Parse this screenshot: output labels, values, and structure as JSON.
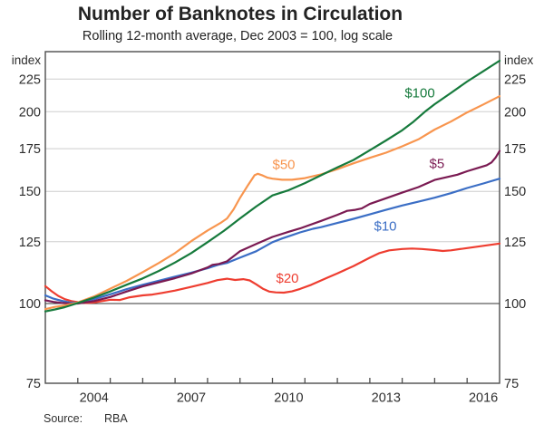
{
  "header": {
    "title": "Number of Banknotes in Circulation",
    "subtitle": "Rolling 12-month average, Dec 2003 = 100, log scale"
  },
  "footer": {
    "source_label": "Source:",
    "source_value": "RBA"
  },
  "chart_data": {
    "type": "line",
    "title": "Number of Banknotes in Circulation",
    "subtitle": "Rolling 12-month average, Dec 2003 = 100, log scale",
    "y_scale": "log",
    "axis_unit_label": "index",
    "x_domain": [
      2003,
      2017
    ],
    "y_domain": [
      75,
      248
    ],
    "y_ticks": [
      225,
      200,
      175,
      150,
      125,
      100,
      75
    ],
    "gridline_values": [
      125,
      150,
      175,
      200,
      225
    ],
    "reference_line": 100,
    "x_ticks": [
      2004,
      2005,
      2006,
      2007,
      2008,
      2009,
      2010,
      2011,
      2012,
      2013,
      2014,
      2015,
      2016
    ],
    "x_tick_labels": [
      {
        "position": 2004.5,
        "label": "2004"
      },
      {
        "position": 2007.5,
        "label": "2007"
      },
      {
        "position": 2010.5,
        "label": "2010"
      },
      {
        "position": 2013.5,
        "label": "2013"
      },
      {
        "position": 2016.5,
        "label": "2016"
      }
    ],
    "colors": {
      "grid": "#cdcdcd",
      "frame": "#4d4d4d",
      "reference": "#333333",
      "text": "#2e2e2e"
    },
    "series": [
      {
        "id": "20",
        "name": "$20",
        "color": "#ee3d30",
        "points": [
          [
            2003.0,
            106.5
          ],
          [
            2003.2,
            104.5
          ],
          [
            2003.4,
            102.8
          ],
          [
            2003.6,
            101.6
          ],
          [
            2003.8,
            100.9
          ],
          [
            2004.0,
            100.5
          ],
          [
            2004.25,
            100.2
          ],
          [
            2004.5,
            100.4
          ],
          [
            2004.75,
            100.9
          ],
          [
            2005.0,
            101.4
          ],
          [
            2005.3,
            101.3
          ],
          [
            2005.6,
            102.3
          ],
          [
            2006.0,
            103.0
          ],
          [
            2006.3,
            103.3
          ],
          [
            2006.6,
            103.9
          ],
          [
            2007.0,
            104.8
          ],
          [
            2007.5,
            106.2
          ],
          [
            2008.0,
            107.7
          ],
          [
            2008.3,
            108.8
          ],
          [
            2008.6,
            109.4
          ],
          [
            2008.85,
            108.9
          ],
          [
            2009.1,
            109.2
          ],
          [
            2009.3,
            108.7
          ],
          [
            2009.5,
            107.2
          ],
          [
            2009.7,
            105.5
          ],
          [
            2009.9,
            104.4
          ],
          [
            2010.1,
            104.1
          ],
          [
            2010.35,
            104.0
          ],
          [
            2010.6,
            104.5
          ],
          [
            2010.85,
            105.4
          ],
          [
            2011.2,
            107.0
          ],
          [
            2011.7,
            109.8
          ],
          [
            2012.0,
            111.5
          ],
          [
            2012.5,
            114.5
          ],
          [
            2013.0,
            118.0
          ],
          [
            2013.3,
            120.0
          ],
          [
            2013.6,
            121.2
          ],
          [
            2014.0,
            121.8
          ],
          [
            2014.3,
            122.0
          ],
          [
            2014.6,
            121.8
          ],
          [
            2015.0,
            121.3
          ],
          [
            2015.25,
            120.9
          ],
          [
            2015.5,
            121.2
          ],
          [
            2016.0,
            122.2
          ],
          [
            2016.5,
            123.2
          ],
          [
            2017.0,
            124.2
          ]
        ]
      },
      {
        "id": "10",
        "name": "$10",
        "color": "#3b6ec5",
        "points": [
          [
            2003.0,
            103.0
          ],
          [
            2003.25,
            101.8
          ],
          [
            2003.5,
            101.0
          ],
          [
            2003.75,
            100.4
          ],
          [
            2004.0,
            100.3
          ],
          [
            2004.5,
            101.6
          ],
          [
            2005.0,
            103.4
          ],
          [
            2005.5,
            105.3
          ],
          [
            2006.0,
            107.0
          ],
          [
            2006.5,
            108.6
          ],
          [
            2007.0,
            110.2
          ],
          [
            2007.5,
            111.8
          ],
          [
            2008.0,
            113.6
          ],
          [
            2008.35,
            115.1
          ],
          [
            2008.6,
            115.8
          ],
          [
            2009.0,
            118.0
          ],
          [
            2009.5,
            120.8
          ],
          [
            2010.0,
            124.8
          ],
          [
            2010.3,
            126.5
          ],
          [
            2010.6,
            128.0
          ],
          [
            2010.85,
            129.3
          ],
          [
            2011.25,
            131.0
          ],
          [
            2011.5,
            131.8
          ],
          [
            2012.0,
            133.8
          ],
          [
            2012.5,
            135.8
          ],
          [
            2013.0,
            138.0
          ],
          [
            2013.5,
            140.3
          ],
          [
            2014.0,
            142.5
          ],
          [
            2014.5,
            144.5
          ],
          [
            2015.0,
            146.6
          ],
          [
            2015.5,
            149.0
          ],
          [
            2016.0,
            151.8
          ],
          [
            2016.5,
            154.3
          ],
          [
            2017.0,
            157.0
          ]
        ]
      },
      {
        "id": "5",
        "name": "$5",
        "color": "#7a1a52",
        "points": [
          [
            2003.0,
            101.2
          ],
          [
            2003.25,
            100.6
          ],
          [
            2003.5,
            100.2
          ],
          [
            2003.75,
            100.0
          ],
          [
            2004.0,
            100.0
          ],
          [
            2004.5,
            100.9
          ],
          [
            2005.0,
            102.4
          ],
          [
            2005.5,
            104.4
          ],
          [
            2006.0,
            106.4
          ],
          [
            2006.5,
            108.0
          ],
          [
            2007.0,
            109.6
          ],
          [
            2007.5,
            111.5
          ],
          [
            2008.0,
            113.9
          ],
          [
            2008.15,
            115.0
          ],
          [
            2008.35,
            115.4
          ],
          [
            2008.6,
            116.5
          ],
          [
            2009.0,
            120.8
          ],
          [
            2009.5,
            124.0
          ],
          [
            2010.0,
            127.2
          ],
          [
            2010.5,
            129.6
          ],
          [
            2010.85,
            131.2
          ],
          [
            2011.5,
            134.8
          ],
          [
            2012.0,
            137.8
          ],
          [
            2012.3,
            139.8
          ],
          [
            2012.55,
            140.3
          ],
          [
            2012.75,
            141.0
          ],
          [
            2013.0,
            143.3
          ],
          [
            2013.5,
            146.3
          ],
          [
            2014.0,
            149.3
          ],
          [
            2014.5,
            152.3
          ],
          [
            2015.0,
            156.3
          ],
          [
            2015.35,
            157.8
          ],
          [
            2015.7,
            159.3
          ],
          [
            2016.0,
            161.3
          ],
          [
            2016.35,
            163.3
          ],
          [
            2016.6,
            164.8
          ],
          [
            2016.75,
            166.5
          ],
          [
            2016.88,
            169.5
          ],
          [
            2017.0,
            173.5
          ]
        ]
      },
      {
        "id": "50",
        "name": "$50",
        "color": "#f8954e",
        "points": [
          [
            2003.0,
            98.0
          ],
          [
            2003.3,
            98.8
          ],
          [
            2003.6,
            99.3
          ],
          [
            2004.0,
            100.4
          ],
          [
            2004.5,
            102.6
          ],
          [
            2005.0,
            105.5
          ],
          [
            2005.5,
            108.5
          ],
          [
            2006.0,
            112.0
          ],
          [
            2006.5,
            115.8
          ],
          [
            2007.0,
            120.0
          ],
          [
            2007.5,
            125.3
          ],
          [
            2008.0,
            130.2
          ],
          [
            2008.4,
            133.8
          ],
          [
            2008.6,
            136.0
          ],
          [
            2008.8,
            140.5
          ],
          [
            2009.0,
            146.5
          ],
          [
            2009.25,
            153.5
          ],
          [
            2009.45,
            159.0
          ],
          [
            2009.55,
            159.8
          ],
          [
            2009.7,
            158.8
          ],
          [
            2009.85,
            157.6
          ],
          [
            2010.0,
            157.0
          ],
          [
            2010.3,
            156.4
          ],
          [
            2010.6,
            156.4
          ],
          [
            2011.0,
            157.3
          ],
          [
            2011.5,
            159.5
          ],
          [
            2012.0,
            162.5
          ],
          [
            2012.5,
            166.0
          ],
          [
            2013.0,
            169.3
          ],
          [
            2013.5,
            172.5
          ],
          [
            2014.0,
            176.5
          ],
          [
            2014.5,
            181.0
          ],
          [
            2015.0,
            187.5
          ],
          [
            2015.5,
            193.0
          ],
          [
            2016.0,
            199.5
          ],
          [
            2016.5,
            205.3
          ],
          [
            2017.0,
            211.5
          ]
        ]
      },
      {
        "id": "100",
        "name": "$100",
        "color": "#167a3c",
        "points": [
          [
            2003.0,
            97.2
          ],
          [
            2003.3,
            97.9
          ],
          [
            2003.6,
            98.7
          ],
          [
            2004.0,
            100.2
          ],
          [
            2004.5,
            102.2
          ],
          [
            2005.0,
            104.5
          ],
          [
            2005.5,
            107.0
          ],
          [
            2006.0,
            109.5
          ],
          [
            2006.5,
            112.5
          ],
          [
            2007.0,
            116.0
          ],
          [
            2007.5,
            120.0
          ],
          [
            2008.0,
            124.8
          ],
          [
            2008.5,
            130.0
          ],
          [
            2009.0,
            136.0
          ],
          [
            2009.5,
            142.0
          ],
          [
            2010.0,
            147.8
          ],
          [
            2010.5,
            150.6
          ],
          [
            2011.0,
            154.5
          ],
          [
            2011.5,
            159.0
          ],
          [
            2012.0,
            163.5
          ],
          [
            2012.5,
            168.0
          ],
          [
            2013.0,
            174.0
          ],
          [
            2013.5,
            180.3
          ],
          [
            2014.0,
            187.0
          ],
          [
            2014.35,
            193.0
          ],
          [
            2014.7,
            200.0
          ],
          [
            2015.0,
            205.5
          ],
          [
            2015.5,
            214.0
          ],
          [
            2016.0,
            223.0
          ],
          [
            2016.5,
            231.5
          ],
          [
            2017.0,
            240.5
          ]
        ]
      }
    ],
    "series_labels": [
      {
        "text": "$100",
        "color": "#167a3c",
        "x_year": 2014.54,
        "y_value": 214.5
      },
      {
        "text": "$50",
        "color": "#f8954e",
        "x_year": 2010.35,
        "y_value": 165.5
      },
      {
        "text": "$5",
        "color": "#7a1a52",
        "x_year": 2015.07,
        "y_value": 166.0
      },
      {
        "text": "$10",
        "color": "#3b6ec5",
        "x_year": 2013.48,
        "y_value": 132.5
      },
      {
        "text": "$20",
        "color": "#ee3d30",
        "x_year": 2010.46,
        "y_value": 109.7
      }
    ]
  }
}
